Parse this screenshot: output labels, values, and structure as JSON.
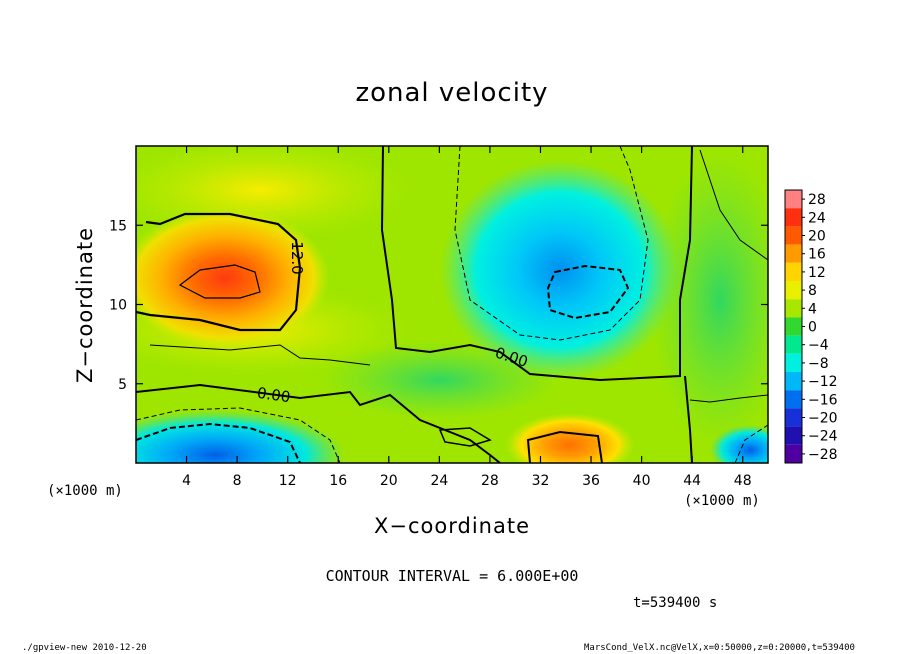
{
  "chart_data": {
    "type": "heatmap",
    "title": "zonal velocity",
    "xlabel": "X−coordinate",
    "ylabel": "Z−coordinate",
    "x_unit_left": "(×1000 m)",
    "x_unit_right": "(×1000 m)",
    "xlim": [
      0,
      50
    ],
    "ylim": [
      0,
      20
    ],
    "x_ticks": [
      4,
      8,
      12,
      16,
      20,
      24,
      28,
      32,
      36,
      40,
      44,
      48
    ],
    "x_tick_labels": [
      "4",
      "8",
      "12",
      "16",
      "20",
      "24",
      "28",
      "32",
      "36",
      "40",
      "44",
      "48"
    ],
    "y_ticks": [
      5,
      10,
      15
    ],
    "y_tick_labels": [
      "5",
      "10",
      "15"
    ],
    "colorbar_levels": [
      28,
      24,
      20,
      16,
      12,
      8,
      4,
      0,
      -4,
      -8,
      -12,
      -16,
      -20,
      -24,
      -28
    ],
    "colorbar_labels": [
      "28",
      "24",
      "20",
      "16",
      "12",
      "8",
      "4",
      "0",
      "−4",
      "−8",
      "−12",
      "−16",
      "−20",
      "−24",
      "−28"
    ],
    "colorbar_colors": [
      "#ff8080",
      "#ff3010",
      "#ff5a00",
      "#ff9a00",
      "#ffd400",
      "#e8f000",
      "#a8e800",
      "#30d830",
      "#00e890",
      "#00f0e0",
      "#00b8f8",
      "#0070f0",
      "#1830d8",
      "#2010b0",
      "#5000a0"
    ],
    "contour_labels": [
      "12.0",
      "0.00",
      "0.00"
    ],
    "contour_interval_text": "CONTOUR INTERVAL = 6.000E+00",
    "time_text": "t=539400 s",
    "features": [
      {
        "label": "positive max",
        "x": 7,
        "z": 11.5,
        "value": 18
      },
      {
        "label": "negative min",
        "x": 35,
        "z": 10.8,
        "value": -11
      },
      {
        "label": "positive surface",
        "x": 35,
        "z": 1,
        "value": 16
      },
      {
        "label": "negative surface",
        "x": 10,
        "z": 1.5,
        "value": -12
      }
    ]
  },
  "footer": {
    "left": "./gpview-new   2010-12-20",
    "right": "MarsCond_VelX.nc@VelX,x=0:50000,z=0:20000,t=539400"
  }
}
